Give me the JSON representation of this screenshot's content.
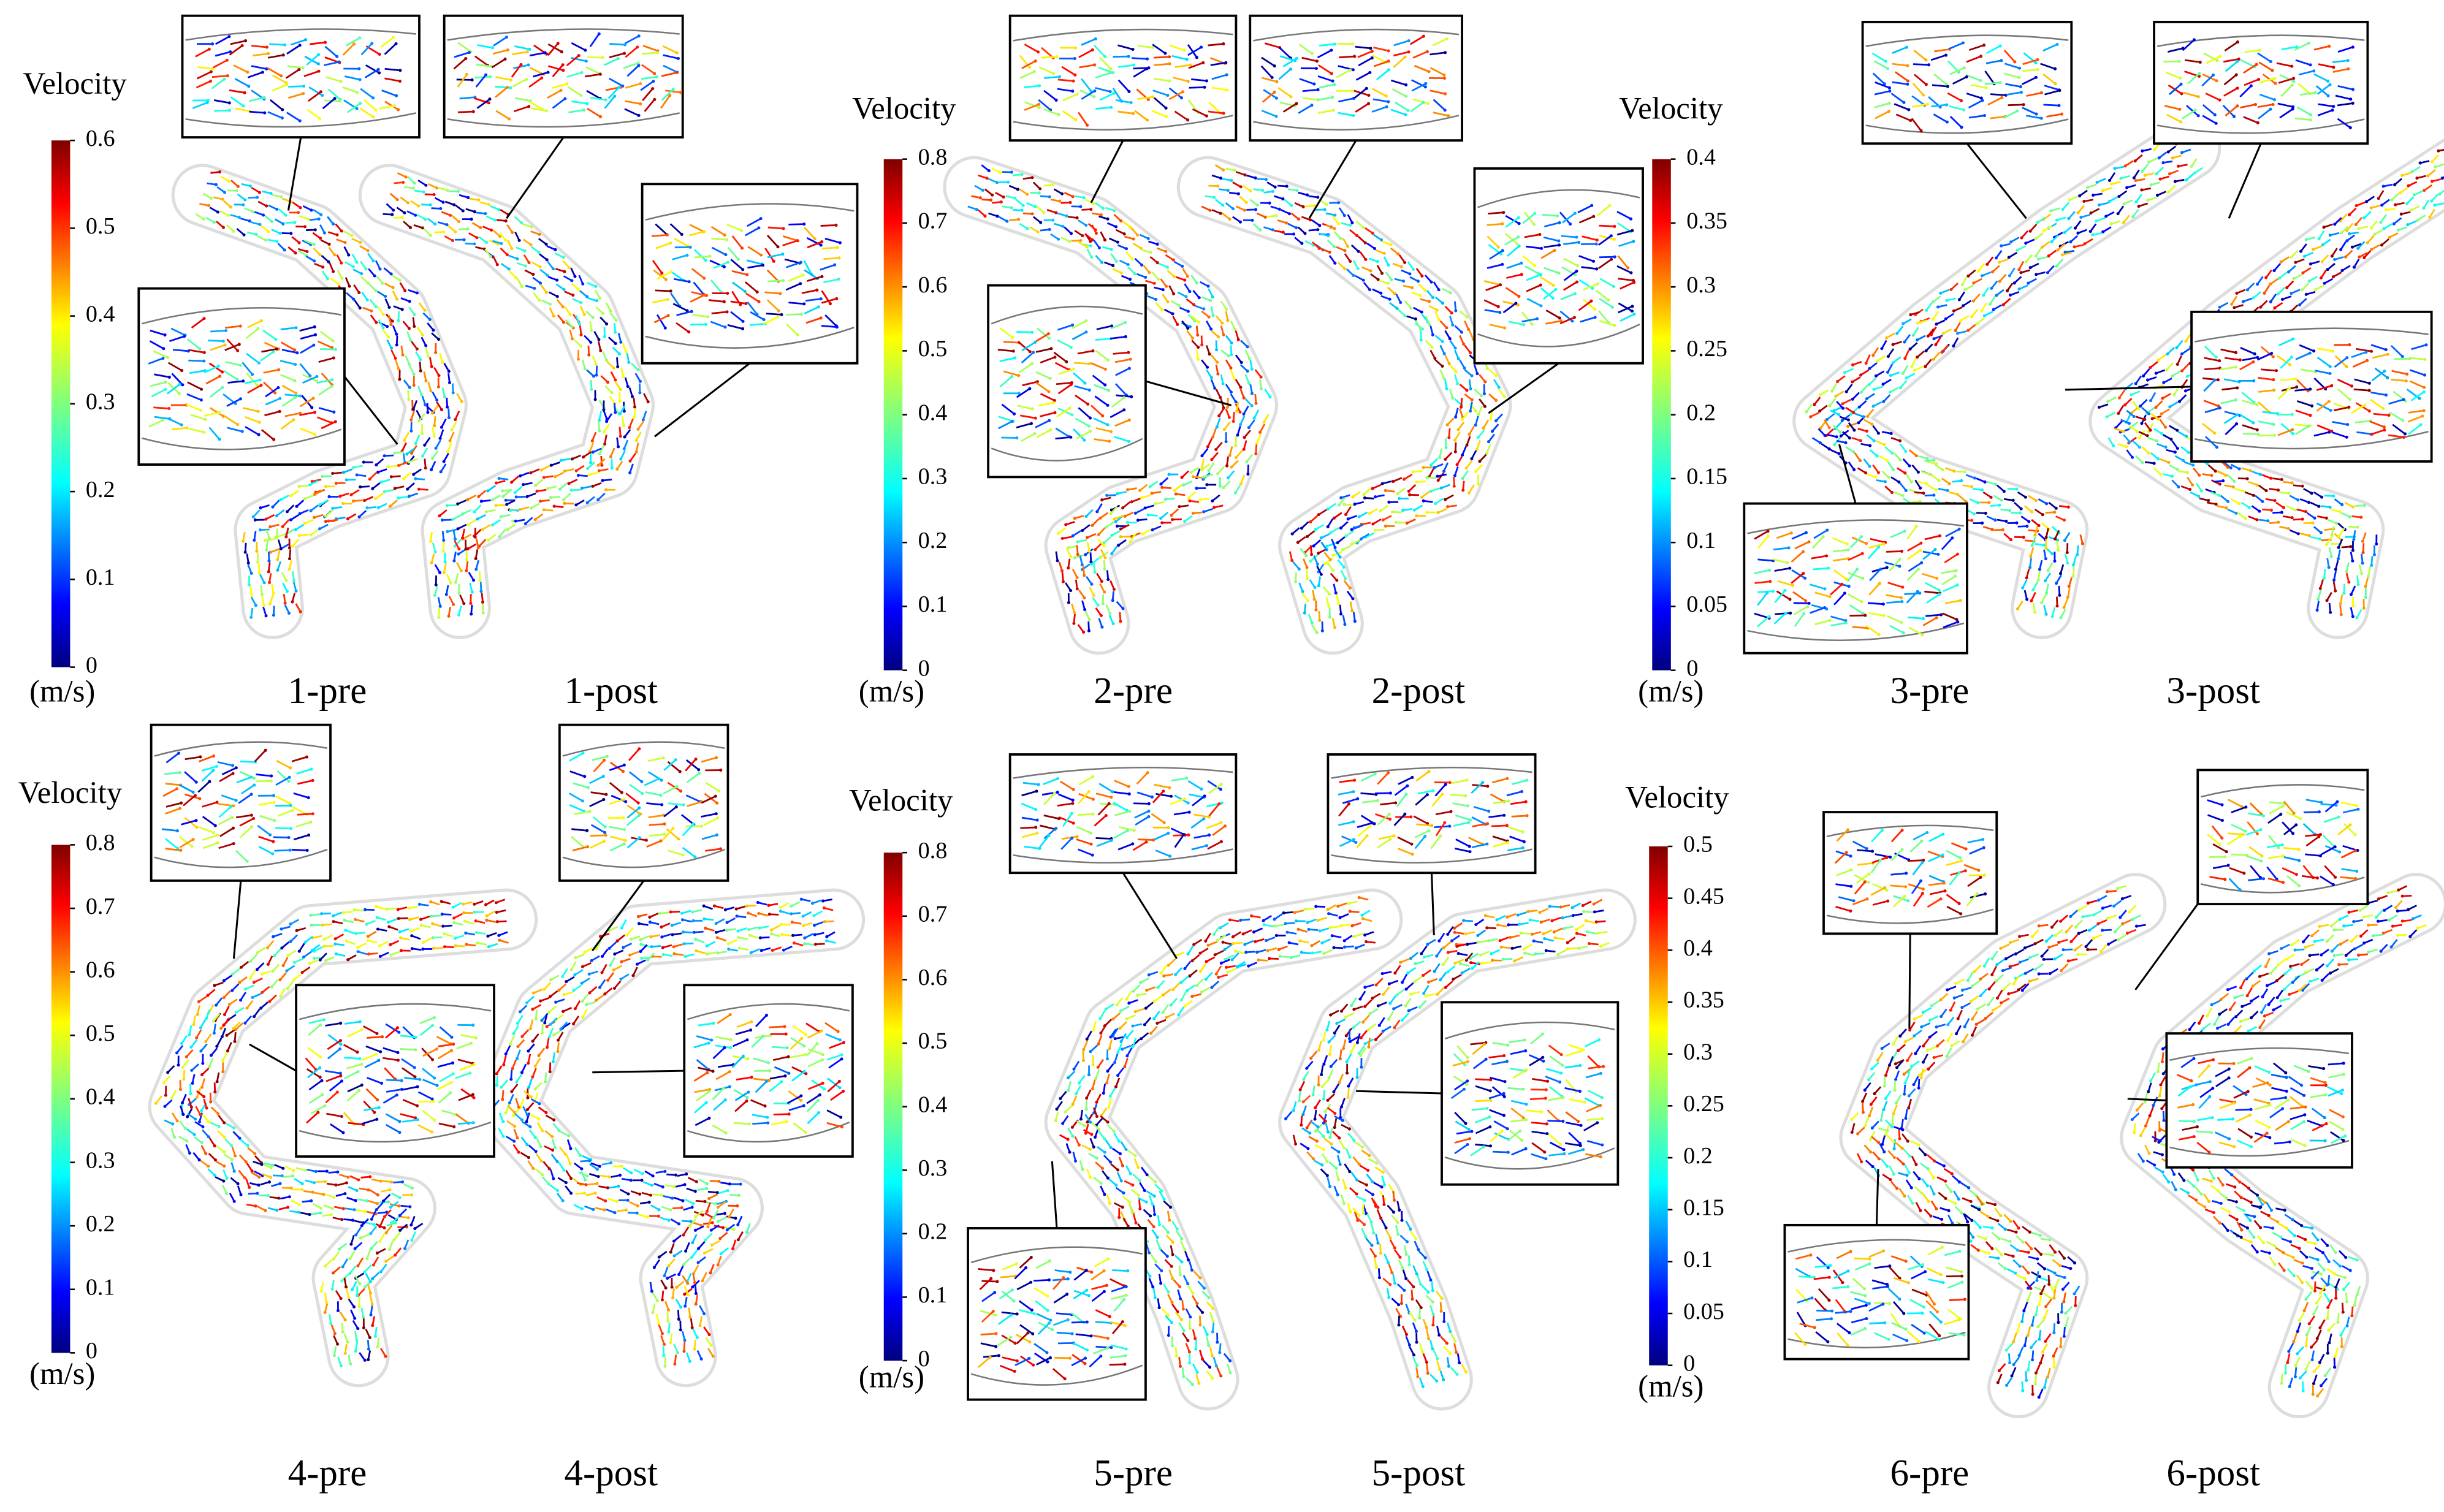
{
  "colorbars": [
    {
      "title": "Velocity",
      "unit": "(m/s)",
      "ticks": [
        0,
        0.1,
        0.2,
        0.3,
        0.4,
        0.5,
        0.6
      ]
    },
    {
      "title": "Velocity",
      "unit": "(m/s)",
      "ticks": [
        0,
        0.1,
        0.2,
        0.3,
        0.4,
        0.5,
        0.6,
        0.7,
        0.8
      ]
    },
    {
      "title": "Velocity",
      "unit": "(m/s)",
      "ticks": [
        0,
        0.05,
        0.1,
        0.15,
        0.2,
        0.25,
        0.3,
        0.35,
        0.4
      ]
    },
    {
      "title": "Velocity",
      "unit": "(m/s)",
      "ticks": [
        0,
        0.1,
        0.2,
        0.3,
        0.4,
        0.5,
        0.6,
        0.7,
        0.8
      ]
    },
    {
      "title": "Velocity",
      "unit": "(m/s)",
      "ticks": [
        0,
        0.1,
        0.2,
        0.3,
        0.4,
        0.5,
        0.6,
        0.7,
        0.8
      ]
    },
    {
      "title": "Velocity",
      "unit": "(m/s)",
      "ticks": [
        0,
        0.05,
        0.1,
        0.15,
        0.2,
        0.25,
        0.3,
        0.35,
        0.4,
        0.45,
        0.5
      ]
    }
  ],
  "panels": [
    {
      "pre": "1-pre",
      "post": "1-post"
    },
    {
      "pre": "2-pre",
      "post": "2-post"
    },
    {
      "pre": "3-pre",
      "post": "3-post"
    },
    {
      "pre": "4-pre",
      "post": "4-post"
    },
    {
      "pre": "5-pre",
      "post": "5-post"
    },
    {
      "pre": "6-pre",
      "post": "6-post"
    }
  ]
}
